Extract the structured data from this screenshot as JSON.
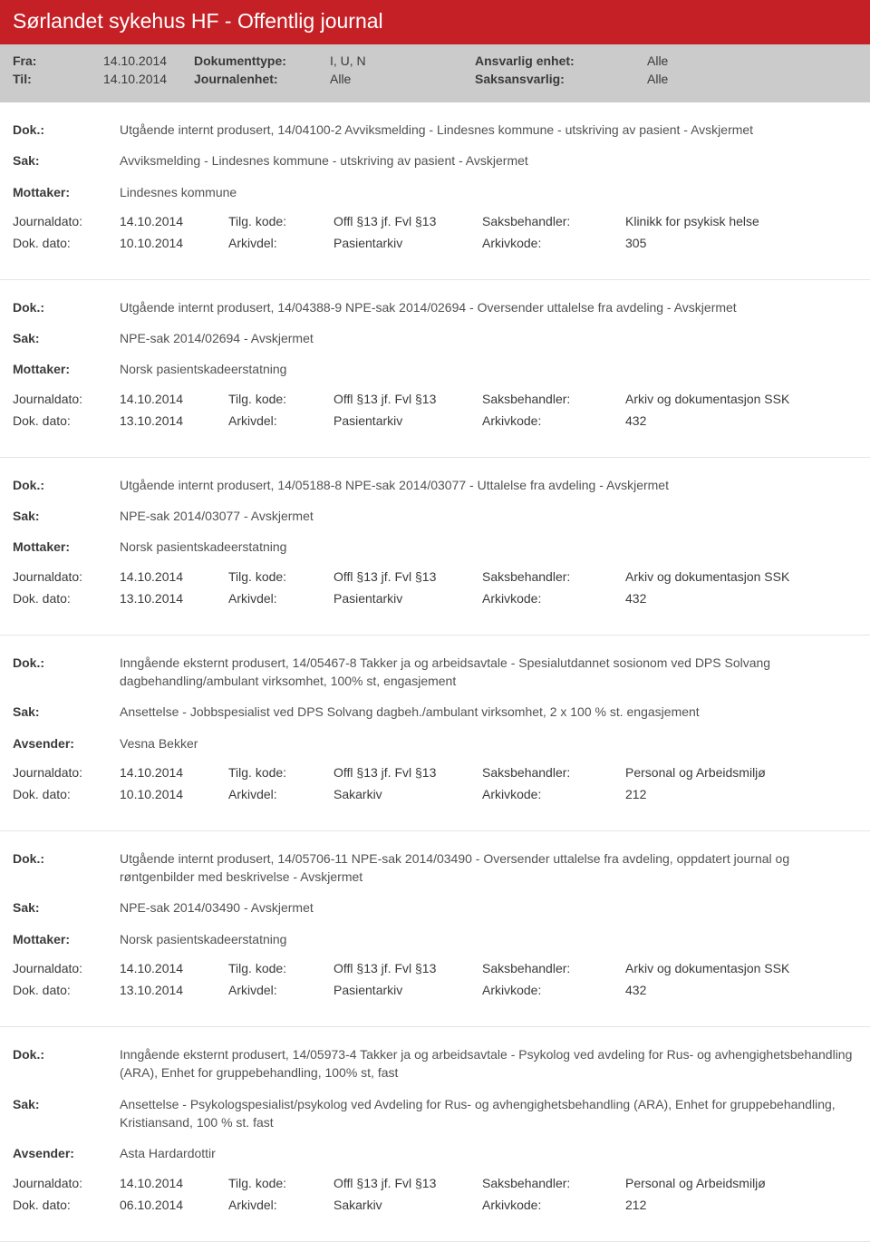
{
  "header": {
    "title": "Sørlandet sykehus HF - Offentlig journal"
  },
  "filter": {
    "r1": {
      "l1": "Fra:",
      "v1": "14.10.2014",
      "l2": "Dokumenttype:",
      "v2": "I, U, N",
      "l3": "Ansvarlig enhet:",
      "v3": "Alle"
    },
    "r2": {
      "l1": "Til:",
      "v1": "14.10.2014",
      "l2": "Journalenhet:",
      "v2": "Alle",
      "l3": "Saksansvarlig:",
      "v3": "Alle"
    }
  },
  "labels": {
    "dok": "Dok.:",
    "sak": "Sak:",
    "mottaker": "Mottaker:",
    "avsender": "Avsender:",
    "journaldato": "Journaldato:",
    "dokdato": "Dok. dato:",
    "tilgkode": "Tilg. kode:",
    "arkivdel": "Arkivdel:",
    "saksbehandler": "Saksbehandler:",
    "arkivkode": "Arkivkode:"
  },
  "entries": [
    {
      "dok": "Utgående internt produsert, 14/04100-2 Avviksmelding - Lindesnes kommune - utskriving av pasient - Avskjermet",
      "sak": "Avviksmelding - Lindesnes kommune - utskriving av pasient - Avskjermet",
      "partyLabel": "Mottaker:",
      "party": "Lindesnes kommune",
      "journaldato": "14.10.2014",
      "tilgkode": "Offl §13 jf. Fvl §13",
      "saksbehandler": "Klinikk for psykisk helse",
      "dokdato": "10.10.2014",
      "arkivdel": "Pasientarkiv",
      "arkivkode": "305"
    },
    {
      "dok": "Utgående internt produsert, 14/04388-9 NPE-sak 2014/02694 - Oversender uttalelse fra avdeling - Avskjermet",
      "sak": "NPE-sak 2014/02694 - Avskjermet",
      "partyLabel": "Mottaker:",
      "party": "Norsk pasientskadeerstatning",
      "journaldato": "14.10.2014",
      "tilgkode": "Offl §13 jf. Fvl §13",
      "saksbehandler": "Arkiv og dokumentasjon SSK",
      "dokdato": "13.10.2014",
      "arkivdel": "Pasientarkiv",
      "arkivkode": "432"
    },
    {
      "dok": "Utgående internt produsert, 14/05188-8 NPE-sak 2014/03077 - Uttalelse fra avdeling - Avskjermet",
      "sak": "NPE-sak 2014/03077 - Avskjermet",
      "partyLabel": "Mottaker:",
      "party": "Norsk pasientskadeerstatning",
      "journaldato": "14.10.2014",
      "tilgkode": "Offl §13 jf. Fvl §13",
      "saksbehandler": "Arkiv og dokumentasjon SSK",
      "dokdato": "13.10.2014",
      "arkivdel": "Pasientarkiv",
      "arkivkode": "432"
    },
    {
      "dok": "Inngående eksternt produsert, 14/05467-8 Takker ja og arbeidsavtale - Spesialutdannet sosionom ved DPS Solvang dagbehandling/ambulant virksomhet, 100% st, engasjement",
      "sak": "Ansettelse - Jobbspesialist ved DPS Solvang dagbeh./ambulant virksomhet, 2 x 100 % st. engasjement",
      "partyLabel": "Avsender:",
      "party": "Vesna Bekker",
      "journaldato": "14.10.2014",
      "tilgkode": "Offl §13 jf. Fvl §13",
      "saksbehandler": "Personal og Arbeidsmiljø",
      "dokdato": "10.10.2014",
      "arkivdel": "Sakarkiv",
      "arkivkode": "212"
    },
    {
      "dok": "Utgående internt produsert, 14/05706-11 NPE-sak 2014/03490 - Oversender uttalelse fra avdeling, oppdatert journal og røntgenbilder med beskrivelse - Avskjermet",
      "sak": "NPE-sak 2014/03490 - Avskjermet",
      "partyLabel": "Mottaker:",
      "party": "Norsk pasientskadeerstatning",
      "journaldato": "14.10.2014",
      "tilgkode": "Offl §13 jf. Fvl §13",
      "saksbehandler": "Arkiv og dokumentasjon SSK",
      "dokdato": "13.10.2014",
      "arkivdel": "Pasientarkiv",
      "arkivkode": "432"
    },
    {
      "dok": "Inngående eksternt produsert, 14/05973-4 Takker ja og arbeidsavtale - Psykolog ved avdeling for Rus- og avhengighetsbehandling (ARA), Enhet for gruppebehandling, 100% st, fast",
      "sak": "Ansettelse - Psykologspesialist/psykolog ved Avdeling for Rus- og avhengighetsbehandling (ARA), Enhet for gruppebehandling, Kristiansand, 100 % st. fast",
      "partyLabel": "Avsender:",
      "party": "Asta Hardardottir",
      "journaldato": "14.10.2014",
      "tilgkode": "Offl §13 jf. Fvl §13",
      "saksbehandler": "Personal og Arbeidsmiljø",
      "dokdato": "06.10.2014",
      "arkivdel": "Sakarkiv",
      "arkivkode": "212"
    }
  ]
}
